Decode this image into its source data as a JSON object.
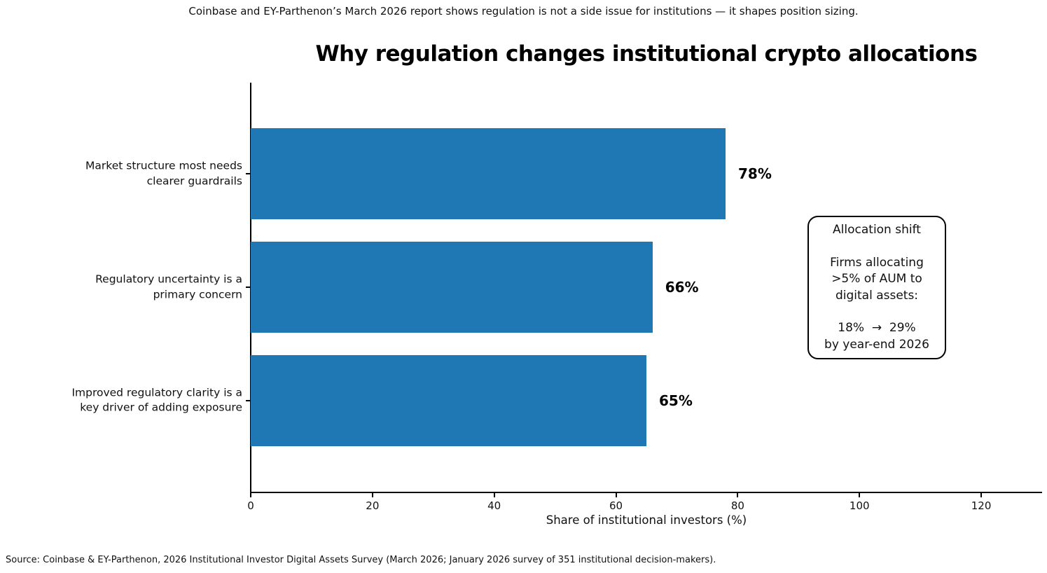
{
  "note": "Coinbase and EY-Parthenon’s March 2026 report shows regulation is not a side issue for institutions — it shapes position sizing.",
  "chart_data": {
    "type": "bar",
    "orientation": "horizontal",
    "title": "Why regulation changes institutional crypto allocations",
    "categories": [
      "Market structure most needs\nclearer guardrails",
      "Regulatory uncertainty is a\nprimary concern",
      "Improved regulatory clarity is a\nkey driver of adding exposure"
    ],
    "values": [
      78,
      66,
      65
    ],
    "value_labels": [
      "78%",
      "66%",
      "65%"
    ],
    "xlabel": "Share of institutional investors (%)",
    "xlim": [
      0,
      130
    ],
    "xticks": [
      0,
      20,
      40,
      60,
      80,
      100,
      120
    ],
    "bar_color": "#1f77b4",
    "grid": false,
    "legend": null
  },
  "annotation": {
    "title": "Allocation shift",
    "line1": "Firms allocating",
    "line2": ">5% of AUM to",
    "line3": "digital assets:",
    "shift_line1": "18%  →  29%",
    "shift_line2": "by year-end 2026"
  },
  "source": "Source: Coinbase & EY-Parthenon, 2026 Institutional Investor Digital Assets Survey (March 2026; January 2026 survey of 351 institutional decision-makers)."
}
